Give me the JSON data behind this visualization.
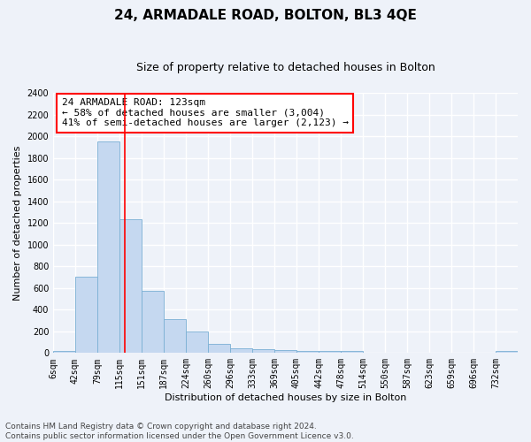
{
  "title": "24, ARMADALE ROAD, BOLTON, BL3 4QE",
  "subtitle": "Size of property relative to detached houses in Bolton",
  "xlabel": "Distribution of detached houses by size in Bolton",
  "ylabel": "Number of detached properties",
  "bar_edges": [
    6,
    42,
    79,
    115,
    151,
    187,
    224,
    260,
    296,
    333,
    369,
    405,
    442,
    478,
    514,
    550,
    587,
    623,
    659,
    696,
    732
  ],
  "bar_heights": [
    20,
    700,
    1950,
    1230,
    570,
    310,
    200,
    85,
    45,
    35,
    30,
    20,
    20,
    15,
    5,
    0,
    0,
    0,
    0,
    0,
    20
  ],
  "bar_color": "#c5d8f0",
  "bar_edgecolor": "#7aafd4",
  "red_line_x": 123,
  "ylim": [
    0,
    2400
  ],
  "xlim_left": 6,
  "xlim_right": 768,
  "yticks": [
    0,
    200,
    400,
    600,
    800,
    1000,
    1200,
    1400,
    1600,
    1800,
    2000,
    2200,
    2400
  ],
  "xtick_labels": [
    "6sqm",
    "42sqm",
    "79sqm",
    "115sqm",
    "151sqm",
    "187sqm",
    "224sqm",
    "260sqm",
    "296sqm",
    "333sqm",
    "369sqm",
    "405sqm",
    "442sqm",
    "478sqm",
    "514sqm",
    "550sqm",
    "587sqm",
    "623sqm",
    "659sqm",
    "696sqm",
    "732sqm"
  ],
  "annotation_text": "24 ARMADALE ROAD: 123sqm\n← 58% of detached houses are smaller (3,004)\n41% of semi-detached houses are larger (2,123) →",
  "footer_text": "Contains HM Land Registry data © Crown copyright and database right 2024.\nContains public sector information licensed under the Open Government Licence v3.0.",
  "background_color": "#eef2f9",
  "grid_color": "#ffffff",
  "title_fontsize": 11,
  "subtitle_fontsize": 9,
  "axis_label_fontsize": 8,
  "tick_fontsize": 7,
  "annotation_fontsize": 8,
  "footer_fontsize": 6.5
}
